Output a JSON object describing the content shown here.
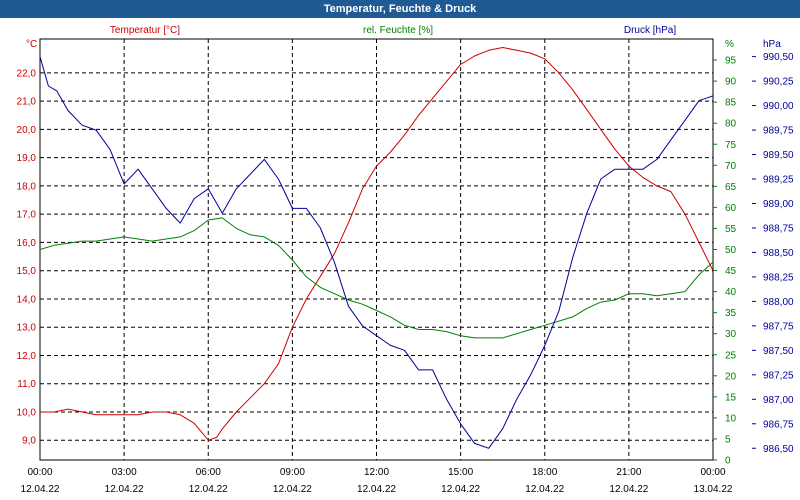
{
  "title": "Temperatur, Feuchte & Druck",
  "colors": {
    "temperature": "#cc0000",
    "humidity": "#008000",
    "pressure": "#00009c",
    "grid": "#000000",
    "titlebar": "#1f5a95"
  },
  "chart_data": {
    "type": "line",
    "title": "Temperatur, Feuchte & Druck",
    "x_tick_times": [
      "00:00",
      "03:00",
      "06:00",
      "09:00",
      "12:00",
      "15:00",
      "18:00",
      "21:00",
      "00:00"
    ],
    "x_tick_dates": [
      "12.04.22",
      "12.04.22",
      "12.04.22",
      "12.04.22",
      "12.04.22",
      "12.04.22",
      "12.04.22",
      "12.04.22",
      "13.04.22"
    ],
    "x_range_hours": [
      0,
      24
    ],
    "axes": {
      "temperature": {
        "unit_label": "°C",
        "legend": "Temperatur [°C]",
        "ylim": [
          8.3,
          23.2
        ],
        "ticks": [
          "9,0",
          "10,0",
          "11,0",
          "12,0",
          "13,0",
          "14,0",
          "15,0",
          "16,0",
          "17,0",
          "18,0",
          "19,0",
          "20,0",
          "21,0",
          "22,0"
        ]
      },
      "humidity": {
        "unit_label": "%",
        "legend": "rel. Feuchte [%]",
        "ylim": [
          0,
          100
        ],
        "ticks": [
          "0",
          "5",
          "10",
          "15",
          "20",
          "25",
          "30",
          "35",
          "40",
          "45",
          "50",
          "55",
          "60",
          "65",
          "70",
          "75",
          "80",
          "85",
          "90",
          "95"
        ]
      },
      "pressure": {
        "unit_label": "hPa",
        "legend": "Druck [hPa]",
        "ylim": [
          986.38,
          990.68
        ],
        "ticks": [
          "986,50",
          "986,75",
          "987,00",
          "987,25",
          "987,50",
          "987,75",
          "988,00",
          "988,25",
          "988,50",
          "988,75",
          "989,00",
          "989,25",
          "989,50",
          "989,75",
          "990,00",
          "990,25",
          "990,50"
        ]
      }
    },
    "series": [
      {
        "name": "Temperatur [°C]",
        "axis": "temperature",
        "x": [
          0,
          0.5,
          1,
          1.5,
          2,
          2.5,
          3,
          3.5,
          4,
          4.5,
          5,
          5.5,
          6,
          6.3,
          6.5,
          7,
          7.5,
          8,
          8.5,
          9,
          9.5,
          10,
          10.5,
          11,
          11.5,
          12,
          12.5,
          13,
          13.5,
          14,
          14.5,
          15,
          15.5,
          16,
          16.5,
          17,
          17.5,
          18,
          18.5,
          19,
          19.5,
          20,
          20.5,
          21,
          21.5,
          22,
          22.5,
          23,
          23.5,
          24
        ],
        "values": [
          10.0,
          10.0,
          10.1,
          10.0,
          9.9,
          9.9,
          9.9,
          9.9,
          10.0,
          10.0,
          9.9,
          9.6,
          9.0,
          9.1,
          9.4,
          10.0,
          10.5,
          11.0,
          11.7,
          13.0,
          14.0,
          14.8,
          15.6,
          16.7,
          17.9,
          18.7,
          19.2,
          19.8,
          20.5,
          21.1,
          21.7,
          22.3,
          22.6,
          22.8,
          22.9,
          22.8,
          22.7,
          22.5,
          22.0,
          21.4,
          20.7,
          20.0,
          19.3,
          18.7,
          18.3,
          18.0,
          17.8,
          17.0,
          16.0,
          15.0
        ]
      },
      {
        "name": "rel. Feuchte [%]",
        "axis": "humidity",
        "x": [
          0,
          0.5,
          1,
          1.5,
          2,
          2.5,
          3,
          3.5,
          4,
          4.5,
          5,
          5.5,
          6,
          6.5,
          7,
          7.5,
          8,
          8.5,
          9,
          9.5,
          10,
          10.5,
          11,
          11.5,
          12,
          12.5,
          13,
          13.5,
          14,
          14.5,
          15,
          15.5,
          16,
          16.5,
          17,
          17.5,
          18,
          18.5,
          19,
          19.5,
          20,
          20.5,
          21,
          21.5,
          22,
          22.5,
          23,
          23.5,
          24
        ],
        "values": [
          50,
          51,
          51.5,
          52,
          52,
          52.5,
          53,
          52.5,
          52,
          52.5,
          53,
          54.5,
          57,
          57.5,
          55,
          53.5,
          53,
          51,
          47.5,
          43.5,
          41,
          39.5,
          38,
          37,
          35.5,
          34,
          32,
          31,
          31,
          30.5,
          29.5,
          29,
          29,
          29,
          30,
          31,
          32,
          33,
          34,
          36,
          37.5,
          38,
          39.5,
          39.5,
          39,
          39.5,
          40,
          44,
          47
        ]
      },
      {
        "name": "Druck [hPa]",
        "axis": "pressure",
        "x": [
          0,
          0.3,
          0.6,
          1,
          1.5,
          2,
          2.5,
          3,
          3.5,
          4,
          4.5,
          5,
          5.5,
          6,
          6.5,
          7,
          7.5,
          8,
          8.5,
          9,
          9.5,
          10,
          10.5,
          11,
          11.5,
          12,
          12.5,
          13,
          13.5,
          14,
          14.5,
          15,
          15.5,
          16,
          16.5,
          17,
          17.5,
          18,
          18.5,
          19,
          19.5,
          20,
          20.5,
          21,
          21.5,
          22,
          22.5,
          23,
          23.5,
          24
        ],
        "values": [
          990.5,
          990.2,
          990.15,
          989.95,
          989.8,
          989.75,
          989.55,
          989.2,
          989.35,
          989.15,
          988.95,
          988.8,
          989.05,
          989.15,
          988.9,
          989.15,
          989.3,
          989.45,
          989.25,
          988.95,
          988.95,
          988.75,
          988.4,
          987.95,
          987.75,
          987.65,
          987.55,
          987.5,
          987.3,
          987.3,
          987.0,
          986.75,
          986.55,
          986.5,
          986.7,
          987.0,
          987.25,
          987.55,
          987.9,
          988.45,
          988.9,
          989.25,
          989.35,
          989.35,
          989.35,
          989.45,
          989.65,
          989.85,
          990.05,
          990.1
        ]
      }
    ]
  }
}
